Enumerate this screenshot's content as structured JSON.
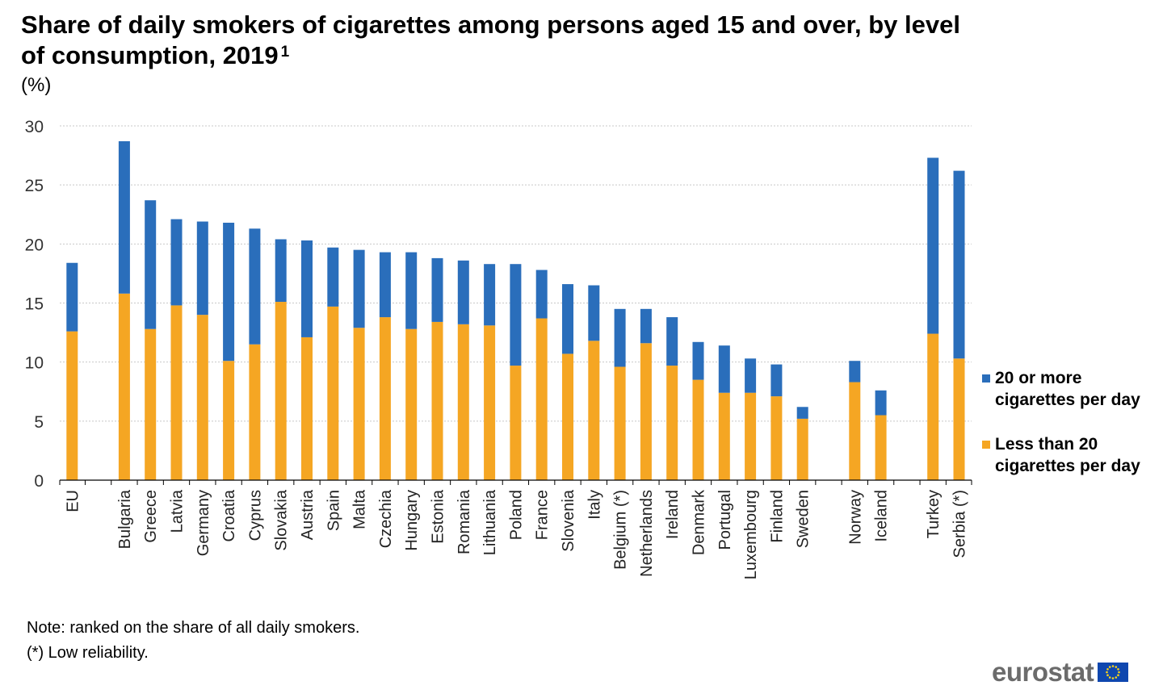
{
  "title": "Share of daily smokers of cigarettes among persons aged 15 and over, by level of consumption, 2019",
  "title_footnote": "1",
  "unit": "(%)",
  "notes": [
    "Note: ranked on the share of all daily smokers.",
    "(*) Low reliability."
  ],
  "logo": {
    "text": "eurostat",
    "icon": "eu-flag-icon"
  },
  "colors": {
    "less_than_20": "#f5a623",
    "20_or_more": "#2a6ebb",
    "grid": "#c8c8c8"
  },
  "chart_data": {
    "type": "bar",
    "stacked": true,
    "orientation": "vertical",
    "ylim": [
      0,
      30
    ],
    "yticks": [
      0,
      5,
      10,
      15,
      20,
      25,
      30
    ],
    "grid": true,
    "legend_position": "right",
    "categories": [
      "EU",
      "Bulgaria",
      "Greece",
      "Latvia",
      "Germany",
      "Croatia",
      "Cyprus",
      "Slovakia",
      "Austria",
      "Spain",
      "Malta",
      "Czechia",
      "Hungary",
      "Estonia",
      "Romania",
      "Lithuania",
      "Poland",
      "France",
      "Slovenia",
      "Italy",
      "Belgium (*)",
      "Netherlands",
      "Ireland",
      "Denmark",
      "Portugal",
      "Luxembourg",
      "Finland",
      "Sweden",
      "Norway",
      "Iceland",
      "Turkey",
      "Serbia (*)"
    ],
    "groups": [
      1,
      27,
      2,
      2
    ],
    "series": [
      {
        "name": "Less than 20 cigarettes per day",
        "color": "#f5a623",
        "values": [
          12.6,
          15.8,
          12.8,
          14.8,
          14.0,
          10.1,
          11.5,
          15.1,
          12.1,
          14.7,
          12.9,
          13.8,
          12.8,
          13.4,
          13.2,
          13.1,
          9.7,
          13.7,
          10.7,
          11.8,
          9.6,
          11.6,
          9.7,
          8.5,
          7.4,
          7.4,
          7.1,
          5.2,
          8.3,
          5.5,
          12.4,
          10.3
        ]
      },
      {
        "name": "20 or more cigarettes per day",
        "color": "#2a6ebb",
        "values": [
          5.8,
          12.9,
          10.9,
          7.3,
          7.9,
          11.7,
          9.8,
          5.3,
          8.2,
          5.0,
          6.6,
          5.5,
          6.5,
          5.4,
          5.4,
          5.2,
          8.6,
          4.1,
          5.9,
          4.7,
          4.9,
          2.9,
          4.1,
          3.2,
          4.0,
          2.9,
          2.7,
          1.0,
          1.8,
          2.1,
          14.9,
          15.9
        ]
      }
    ]
  }
}
